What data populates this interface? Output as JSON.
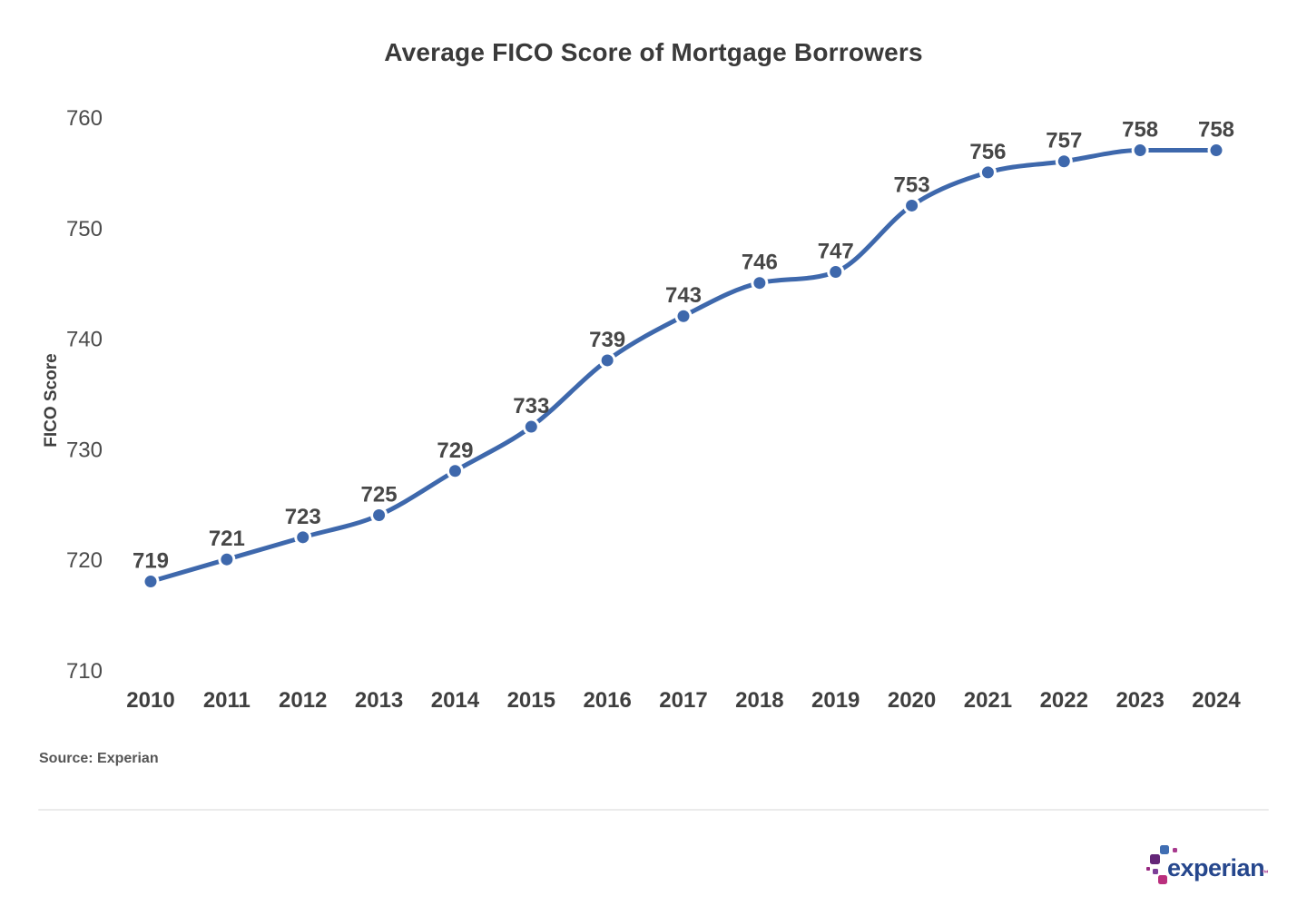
{
  "colors": {
    "background": "#ffffff",
    "line": "#3e68ac",
    "marker": "#3e68ac",
    "marker_halo": "#ffffff",
    "title_text": "#3a3a3a",
    "ytick_text": "#4b4b4b",
    "xtick_text": "#3f3f3f",
    "data_label_text": "#474747",
    "divider": "#ebebeb",
    "source_text": "#565656",
    "logo_navy": "#26478d",
    "logo_blue": "#406eb3",
    "logo_purple": "#632678",
    "logo_violet": "#7d3f98",
    "logo_magenta": "#982881",
    "logo_pink": "#ba2f7d",
    "logo_dot_pink": "#a83a8e"
  },
  "chart_data": {
    "type": "line",
    "title": "Average FICO Score of Mortgage Borrowers",
    "xlabel": "",
    "ylabel": "FICO Score",
    "categories": [
      "2010",
      "2011",
      "2012",
      "2013",
      "2014",
      "2015",
      "2016",
      "2017",
      "2018",
      "2019",
      "2020",
      "2021",
      "2022",
      "2023",
      "2024"
    ],
    "values": [
      719,
      721,
      723,
      725,
      729,
      733,
      739,
      743,
      746,
      747,
      753,
      756,
      757,
      758,
      758
    ],
    "data_labels": [
      "719",
      "721",
      "723",
      "725",
      "729",
      "733",
      "739",
      "743",
      "746",
      "747",
      "753",
      "756",
      "757",
      "758",
      "758"
    ],
    "yticks": [
      710,
      720,
      730,
      740,
      750,
      760
    ],
    "ylim": [
      710,
      760
    ],
    "grid": false,
    "legend_position": "none",
    "markers": true,
    "smooth": true
  },
  "source": {
    "label": "Source: Experian"
  },
  "logo": {
    "wordmark": "experian",
    "trademark": "™"
  }
}
